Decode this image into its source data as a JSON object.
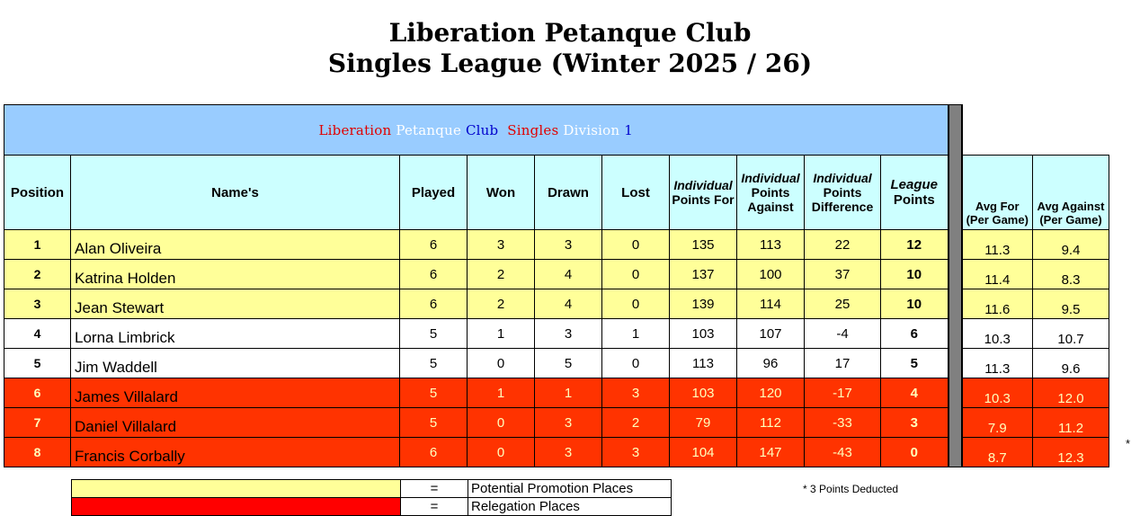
{
  "page_title": {
    "line1": "Liberation Petanque Club",
    "line2": "Singles League (Winter 2025 / 26)"
  },
  "banner": {
    "word1": "Liberation",
    "word2": "Petanque",
    "word3": "Club",
    "word4": "Singles",
    "word5": "Division",
    "word6": "1"
  },
  "headers": {
    "position": "Position",
    "names": "Name's",
    "played": "Played",
    "won": "Won",
    "drawn": "Drawn",
    "lost": "Lost",
    "pts_for_a": "Individual",
    "pts_for_b": "Points For",
    "pts_against_a": "Individual",
    "pts_against_b": "Points Against",
    "pts_diff_a": "Individual",
    "pts_diff_b": "Points Difference",
    "league_a": "League",
    "league_b": "Points",
    "avg_for_a": "Avg For",
    "avg_for_b": "(Per Game)",
    "avg_against_a": "Avg Against",
    "avg_against_b": "(Per Game)"
  },
  "rows": [
    {
      "pos": "1",
      "name": "Alan Oliveira",
      "played": "6",
      "won": "3",
      "drawn": "3",
      "lost": "0",
      "pf": "135",
      "pa": "113",
      "pd": "22",
      "lp": "12",
      "avg_for": "11.3",
      "avg_against": "9.4"
    },
    {
      "pos": "2",
      "name": "Katrina Holden",
      "played": "6",
      "won": "2",
      "drawn": "4",
      "lost": "0",
      "pf": "137",
      "pa": "100",
      "pd": "37",
      "lp": "10",
      "avg_for": "11.4",
      "avg_against": "8.3"
    },
    {
      "pos": "3",
      "name": "Jean Stewart",
      "played": "6",
      "won": "2",
      "drawn": "4",
      "lost": "0",
      "pf": "139",
      "pa": "114",
      "pd": "25",
      "lp": "10",
      "avg_for": "11.6",
      "avg_against": "9.5"
    },
    {
      "pos": "4",
      "name": "Lorna Limbrick",
      "played": "5",
      "won": "1",
      "drawn": "3",
      "lost": "1",
      "pf": "103",
      "pa": "107",
      "pd": "-4",
      "lp": "6",
      "avg_for": "10.3",
      "avg_against": "10.7"
    },
    {
      "pos": "5",
      "name": "Jim Waddell",
      "played": "5",
      "won": "0",
      "drawn": "5",
      "lost": "0",
      "pf": "113",
      "pa": "96",
      "pd": "17",
      "lp": "5",
      "avg_for": "11.3",
      "avg_against": "9.6"
    },
    {
      "pos": "6",
      "name": "James Villalard",
      "played": "5",
      "won": "1",
      "drawn": "1",
      "lost": "3",
      "pf": "103",
      "pa": "120",
      "pd": "-17",
      "lp": "4",
      "avg_for": "10.3",
      "avg_against": "12.0"
    },
    {
      "pos": "7",
      "name": "Daniel Villalard",
      "played": "5",
      "won": "0",
      "drawn": "3",
      "lost": "2",
      "pf": "79",
      "pa": "112",
      "pd": "-33",
      "lp": "3",
      "avg_for": "7.9",
      "avg_against": "11.2"
    },
    {
      "pos": "8",
      "name": "Francis Corbally",
      "played": "6",
      "won": "0",
      "drawn": "3",
      "lost": "3",
      "pf": "104",
      "pa": "147",
      "pd": "-43",
      "lp": "0",
      "avg_for": "8.7",
      "avg_against": "12.3"
    }
  ],
  "asterisk": "*",
  "key": {
    "eq": "=",
    "promotion": "Potential Promotion Places",
    "relegation": "Relegation Places"
  },
  "note": "*  3 Points Deducted",
  "colors": {
    "banner_bg": "#99ccff",
    "header_bg": "#ccffff",
    "promotion": "#ffff99",
    "relegation": "#ff3300"
  }
}
